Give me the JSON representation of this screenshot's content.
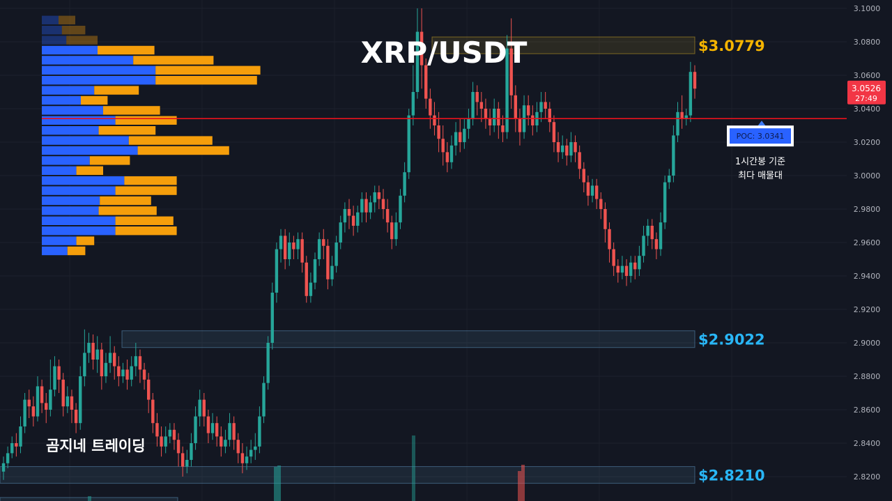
{
  "title": "XRP/USDT",
  "watermark": "곰지네 트레이딩",
  "colors": {
    "background": "#131722",
    "up": "#26a69a",
    "down": "#ef5350",
    "volume_buy": "#2962ff",
    "volume_sell": "#f59e0b",
    "poc_line": "#e8121d",
    "resistance_label": "#f5b400",
    "support_label": "#29b6f6"
  },
  "price_badge": {
    "price": "3.0526",
    "countdown": "27:49"
  },
  "levels": [
    {
      "label": "$3.0779",
      "price": 3.0779,
      "kind": "resistance"
    },
    {
      "label": "$2.9022",
      "price": 2.9022,
      "kind": "support"
    },
    {
      "label": "$2.8210",
      "price": 2.821,
      "kind": "support"
    }
  ],
  "poc": {
    "label": "POC: 3.0341",
    "price": 3.0341,
    "note_line1": "1시간봉 기준",
    "note_line2": "최다 매물대"
  },
  "chart_data": {
    "type": "candlestick",
    "y_axis": {
      "min": 2.813,
      "max": 3.103,
      "ticks": [
        "3.1000",
        "3.0800",
        "3.0600",
        "3.0400",
        "3.0200",
        "3.0000",
        "2.9800",
        "2.9600",
        "2.9400",
        "2.9200",
        "2.9000",
        "2.8800",
        "2.8600",
        "2.8400",
        "2.8200"
      ],
      "position": "right"
    },
    "candles": [
      [
        2.823,
        2.828,
        2.818,
        2.832
      ],
      [
        2.828,
        2.834,
        2.825,
        2.838
      ],
      [
        2.834,
        2.84,
        2.831,
        2.844
      ],
      [
        2.84,
        2.838,
        2.832,
        2.846
      ],
      [
        2.838,
        2.85,
        2.834,
        2.856
      ],
      [
        2.85,
        2.866,
        2.846,
        2.87
      ],
      [
        2.866,
        2.862,
        2.855,
        2.872
      ],
      [
        2.862,
        2.856,
        2.85,
        2.868
      ],
      [
        2.856,
        2.874,
        2.853,
        2.88
      ],
      [
        2.874,
        2.864,
        2.858,
        2.878
      ],
      [
        2.864,
        2.86,
        2.852,
        2.87
      ],
      [
        2.86,
        2.872,
        2.856,
        2.89
      ],
      [
        2.872,
        2.886,
        2.868,
        2.892
      ],
      [
        2.886,
        2.878,
        2.87,
        2.89
      ],
      [
        2.878,
        2.862,
        2.856,
        2.882
      ],
      [
        2.862,
        2.868,
        2.858,
        2.874
      ],
      [
        2.868,
        2.86,
        2.852,
        2.872
      ],
      [
        2.86,
        2.852,
        2.846,
        2.864
      ],
      [
        2.852,
        2.88,
        2.848,
        2.886
      ],
      [
        2.88,
        2.894,
        2.874,
        2.908
      ],
      [
        2.894,
        2.9,
        2.888,
        2.906
      ],
      [
        2.9,
        2.89,
        2.884,
        2.905
      ],
      [
        2.89,
        2.896,
        2.882,
        2.904
      ],
      [
        2.896,
        2.88,
        2.872,
        2.9
      ],
      [
        2.88,
        2.888,
        2.876,
        2.894
      ],
      [
        2.888,
        2.894,
        2.882,
        2.904
      ],
      [
        2.894,
        2.886,
        2.878,
        2.898
      ],
      [
        2.886,
        2.88,
        2.874,
        2.892
      ],
      [
        2.88,
        2.884,
        2.876,
        2.888
      ],
      [
        2.884,
        2.878,
        2.872,
        2.89
      ],
      [
        2.878,
        2.886,
        2.874,
        2.892
      ],
      [
        2.886,
        2.892,
        2.88,
        2.9
      ],
      [
        2.892,
        2.884,
        2.876,
        2.896
      ],
      [
        2.884,
        2.878,
        2.872,
        2.888
      ],
      [
        2.878,
        2.866,
        2.858,
        2.882
      ],
      [
        2.866,
        2.852,
        2.846,
        2.87
      ],
      [
        2.852,
        2.844,
        2.838,
        2.858
      ],
      [
        2.844,
        2.838,
        2.832,
        2.85
      ],
      [
        2.838,
        2.844,
        2.834,
        2.85
      ],
      [
        2.844,
        2.848,
        2.84,
        2.852
      ],
      [
        2.848,
        2.842,
        2.836,
        2.852
      ],
      [
        2.842,
        2.834,
        2.826,
        2.846
      ],
      [
        2.834,
        2.826,
        2.82,
        2.838
      ],
      [
        2.826,
        2.83,
        2.822,
        2.836
      ],
      [
        2.83,
        2.84,
        2.826,
        2.846
      ],
      [
        2.84,
        2.856,
        2.836,
        2.862
      ],
      [
        2.856,
        2.866,
        2.85,
        2.872
      ],
      [
        2.866,
        2.856,
        2.85,
        2.87
      ],
      [
        2.856,
        2.846,
        2.84,
        2.86
      ],
      [
        2.846,
        2.852,
        2.842,
        2.858
      ],
      [
        2.852,
        2.844,
        2.838,
        2.856
      ],
      [
        2.844,
        2.838,
        2.832,
        2.85
      ],
      [
        2.838,
        2.842,
        2.834,
        2.848
      ],
      [
        2.842,
        2.852,
        2.838,
        2.858
      ],
      [
        2.852,
        2.842,
        2.836,
        2.856
      ],
      [
        2.842,
        2.834,
        2.828,
        2.846
      ],
      [
        2.834,
        2.828,
        2.822,
        2.84
      ],
      [
        2.828,
        2.832,
        2.824,
        2.838
      ],
      [
        2.832,
        2.836,
        2.828,
        2.842
      ],
      [
        2.836,
        2.838,
        2.83,
        2.846
      ],
      [
        2.838,
        2.856,
        2.834,
        2.862
      ],
      [
        2.856,
        2.876,
        2.852,
        2.88
      ],
      [
        2.876,
        2.9,
        2.872,
        2.904
      ],
      [
        2.9,
        2.93,
        2.896,
        2.936
      ],
      [
        2.93,
        2.956,
        2.924,
        2.96
      ],
      [
        2.956,
        2.964,
        2.948,
        2.968
      ],
      [
        2.964,
        2.95,
        2.944,
        2.968
      ],
      [
        2.95,
        2.96,
        2.946,
        2.966
      ],
      [
        2.96,
        2.956,
        2.95,
        2.964
      ],
      [
        2.956,
        2.962,
        2.95,
        2.966
      ],
      [
        2.962,
        2.948,
        2.942,
        2.966
      ],
      [
        2.948,
        2.928,
        2.924,
        2.952
      ],
      [
        2.928,
        2.936,
        2.924,
        2.942
      ],
      [
        2.936,
        2.95,
        2.932,
        2.954
      ],
      [
        2.95,
        2.962,
        2.946,
        2.966
      ],
      [
        2.962,
        2.958,
        2.95,
        2.968
      ],
      [
        2.958,
        2.938,
        2.932,
        2.962
      ],
      [
        2.938,
        2.946,
        2.934,
        2.952
      ],
      [
        2.946,
        2.96,
        2.942,
        2.964
      ],
      [
        2.96,
        2.972,
        2.956,
        2.976
      ],
      [
        2.972,
        2.98,
        2.966,
        2.984
      ],
      [
        2.98,
        2.976,
        2.968,
        2.986
      ],
      [
        2.976,
        2.97,
        2.964,
        2.982
      ],
      [
        2.97,
        2.978,
        2.966,
        2.982
      ],
      [
        2.978,
        2.986,
        2.972,
        2.99
      ],
      [
        2.986,
        2.978,
        2.972,
        2.99
      ],
      [
        2.978,
        2.984,
        2.974,
        2.988
      ],
      [
        2.984,
        2.99,
        2.978,
        2.994
      ],
      [
        2.99,
        2.986,
        2.98,
        2.994
      ],
      [
        2.986,
        2.98,
        2.974,
        2.992
      ],
      [
        2.98,
        2.972,
        2.966,
        2.986
      ],
      [
        2.972,
        2.962,
        2.956,
        2.976
      ],
      [
        2.962,
        2.972,
        2.958,
        2.978
      ],
      [
        2.972,
        2.988,
        2.968,
        2.992
      ],
      [
        2.988,
        3.002,
        2.984,
        3.008
      ],
      [
        3.002,
        3.036,
        2.998,
        3.04
      ],
      [
        3.036,
        3.05,
        3.03,
        3.066
      ],
      [
        3.05,
        3.086,
        3.046,
        3.1
      ],
      [
        3.086,
        3.066,
        3.052,
        3.1
      ],
      [
        3.066,
        3.046,
        3.04,
        3.07
      ],
      [
        3.046,
        3.036,
        3.028,
        3.052
      ],
      [
        3.036,
        3.03,
        3.024,
        3.044
      ],
      [
        3.03,
        3.022,
        3.014,
        3.038
      ],
      [
        3.022,
        3.014,
        3.006,
        3.03
      ],
      [
        3.014,
        3.008,
        3.002,
        3.02
      ],
      [
        3.008,
        3.018,
        3.004,
        3.024
      ],
      [
        3.018,
        3.026,
        3.012,
        3.032
      ],
      [
        3.026,
        3.02,
        3.014,
        3.034
      ],
      [
        3.02,
        3.028,
        3.016,
        3.034
      ],
      [
        3.028,
        3.034,
        3.022,
        3.04
      ],
      [
        3.034,
        3.05,
        3.03,
        3.056
      ],
      [
        3.05,
        3.044,
        3.036,
        3.054
      ],
      [
        3.044,
        3.04,
        3.032,
        3.05
      ],
      [
        3.04,
        3.034,
        3.028,
        3.046
      ],
      [
        3.034,
        3.03,
        3.024,
        3.04
      ],
      [
        3.03,
        3.04,
        3.026,
        3.046
      ],
      [
        3.04,
        3.03,
        3.022,
        3.044
      ],
      [
        3.03,
        3.026,
        3.02,
        3.036
      ],
      [
        3.026,
        3.076,
        3.022,
        3.084
      ],
      [
        3.076,
        3.048,
        3.04,
        3.094
      ],
      [
        3.048,
        3.034,
        3.026,
        3.054
      ],
      [
        3.034,
        3.026,
        3.018,
        3.04
      ],
      [
        3.026,
        3.042,
        3.022,
        3.048
      ],
      [
        3.042,
        3.036,
        3.03,
        3.048
      ],
      [
        3.036,
        3.03,
        3.024,
        3.042
      ],
      [
        3.03,
        3.038,
        3.026,
        3.044
      ],
      [
        3.038,
        3.044,
        3.032,
        3.05
      ],
      [
        3.044,
        3.04,
        3.034,
        3.05
      ],
      [
        3.04,
        3.032,
        3.026,
        3.044
      ],
      [
        3.032,
        3.02,
        3.014,
        3.036
      ],
      [
        3.02,
        3.014,
        3.008,
        3.026
      ],
      [
        3.014,
        3.018,
        3.01,
        3.024
      ],
      [
        3.018,
        3.012,
        3.006,
        3.022
      ],
      [
        3.012,
        3.02,
        3.008,
        3.026
      ],
      [
        3.02,
        3.014,
        3.008,
        3.024
      ],
      [
        3.014,
        3.004,
        2.998,
        3.018
      ],
      [
        3.004,
        2.996,
        2.99,
        3.008
      ],
      [
        2.996,
        2.988,
        2.982,
        3.0
      ],
      [
        2.988,
        2.994,
        2.984,
        2.998
      ],
      [
        2.994,
        2.986,
        2.98,
        2.998
      ],
      [
        2.986,
        2.98,
        2.974,
        2.99
      ],
      [
        2.98,
        2.968,
        2.96,
        2.984
      ],
      [
        2.968,
        2.956,
        2.948,
        2.972
      ],
      [
        2.956,
        2.946,
        2.94,
        2.96
      ],
      [
        2.946,
        2.942,
        2.936,
        2.95
      ],
      [
        2.942,
        2.946,
        2.938,
        2.952
      ],
      [
        2.946,
        2.94,
        2.934,
        2.95
      ],
      [
        2.94,
        2.948,
        2.936,
        2.952
      ],
      [
        2.948,
        2.944,
        2.938,
        2.952
      ],
      [
        2.944,
        2.952,
        2.94,
        2.958
      ],
      [
        2.952,
        2.964,
        2.948,
        2.97
      ],
      [
        2.964,
        2.97,
        2.958,
        2.974
      ],
      [
        2.97,
        2.962,
        2.956,
        2.974
      ],
      [
        2.962,
        2.956,
        2.95,
        2.966
      ],
      [
        2.956,
        2.972,
        2.952,
        2.978
      ],
      [
        2.972,
        2.996,
        2.968,
        3.0
      ],
      [
        2.996,
        3.0,
        2.992,
        3.004
      ],
      [
        3.0,
        3.024,
        2.996,
        3.03
      ],
      [
        3.024,
        3.038,
        3.02,
        3.044
      ],
      [
        3.038,
        3.034,
        3.028,
        3.048
      ],
      [
        3.034,
        3.036,
        3.03,
        3.04
      ],
      [
        3.036,
        3.062,
        3.032,
        3.068
      ],
      [
        3.062,
        3.052,
        3.046,
        3.066
      ]
    ],
    "volume_profile": [
      [
        3.096,
        3.09,
        0.15,
        0.15
      ],
      [
        3.09,
        3.084,
        0.18,
        0.21
      ],
      [
        3.084,
        3.078,
        0.22,
        0.28
      ],
      [
        3.078,
        3.072,
        0.5,
        0.51
      ],
      [
        3.072,
        3.066,
        0.82,
        0.72
      ],
      [
        3.066,
        3.06,
        1.02,
        0.94
      ],
      [
        3.06,
        3.054,
        1.02,
        0.91
      ],
      [
        3.054,
        3.048,
        0.47,
        0.4
      ],
      [
        3.048,
        3.042,
        0.35,
        0.24
      ],
      [
        3.042,
        3.036,
        0.55,
        0.51
      ],
      [
        3.036,
        3.03,
        0.66,
        0.55
      ],
      [
        3.03,
        3.024,
        0.51,
        0.51
      ],
      [
        3.024,
        3.018,
        0.78,
        0.75
      ],
      [
        3.018,
        3.012,
        0.86,
        0.82
      ],
      [
        3.012,
        3.006,
        0.43,
        0.36
      ],
      [
        3.006,
        3.0,
        0.31,
        0.24
      ],
      [
        3.0,
        2.994,
        0.74,
        0.47
      ],
      [
        2.994,
        2.988,
        0.66,
        0.55
      ],
      [
        2.988,
        2.982,
        0.52,
        0.46
      ],
      [
        2.982,
        2.976,
        0.51,
        0.52
      ],
      [
        2.976,
        2.97,
        0.66,
        0.52
      ],
      [
        2.97,
        2.964,
        0.66,
        0.55
      ],
      [
        2.964,
        2.958,
        0.31,
        0.16
      ],
      [
        2.958,
        2.952,
        0.23,
        0.16
      ]
    ]
  }
}
